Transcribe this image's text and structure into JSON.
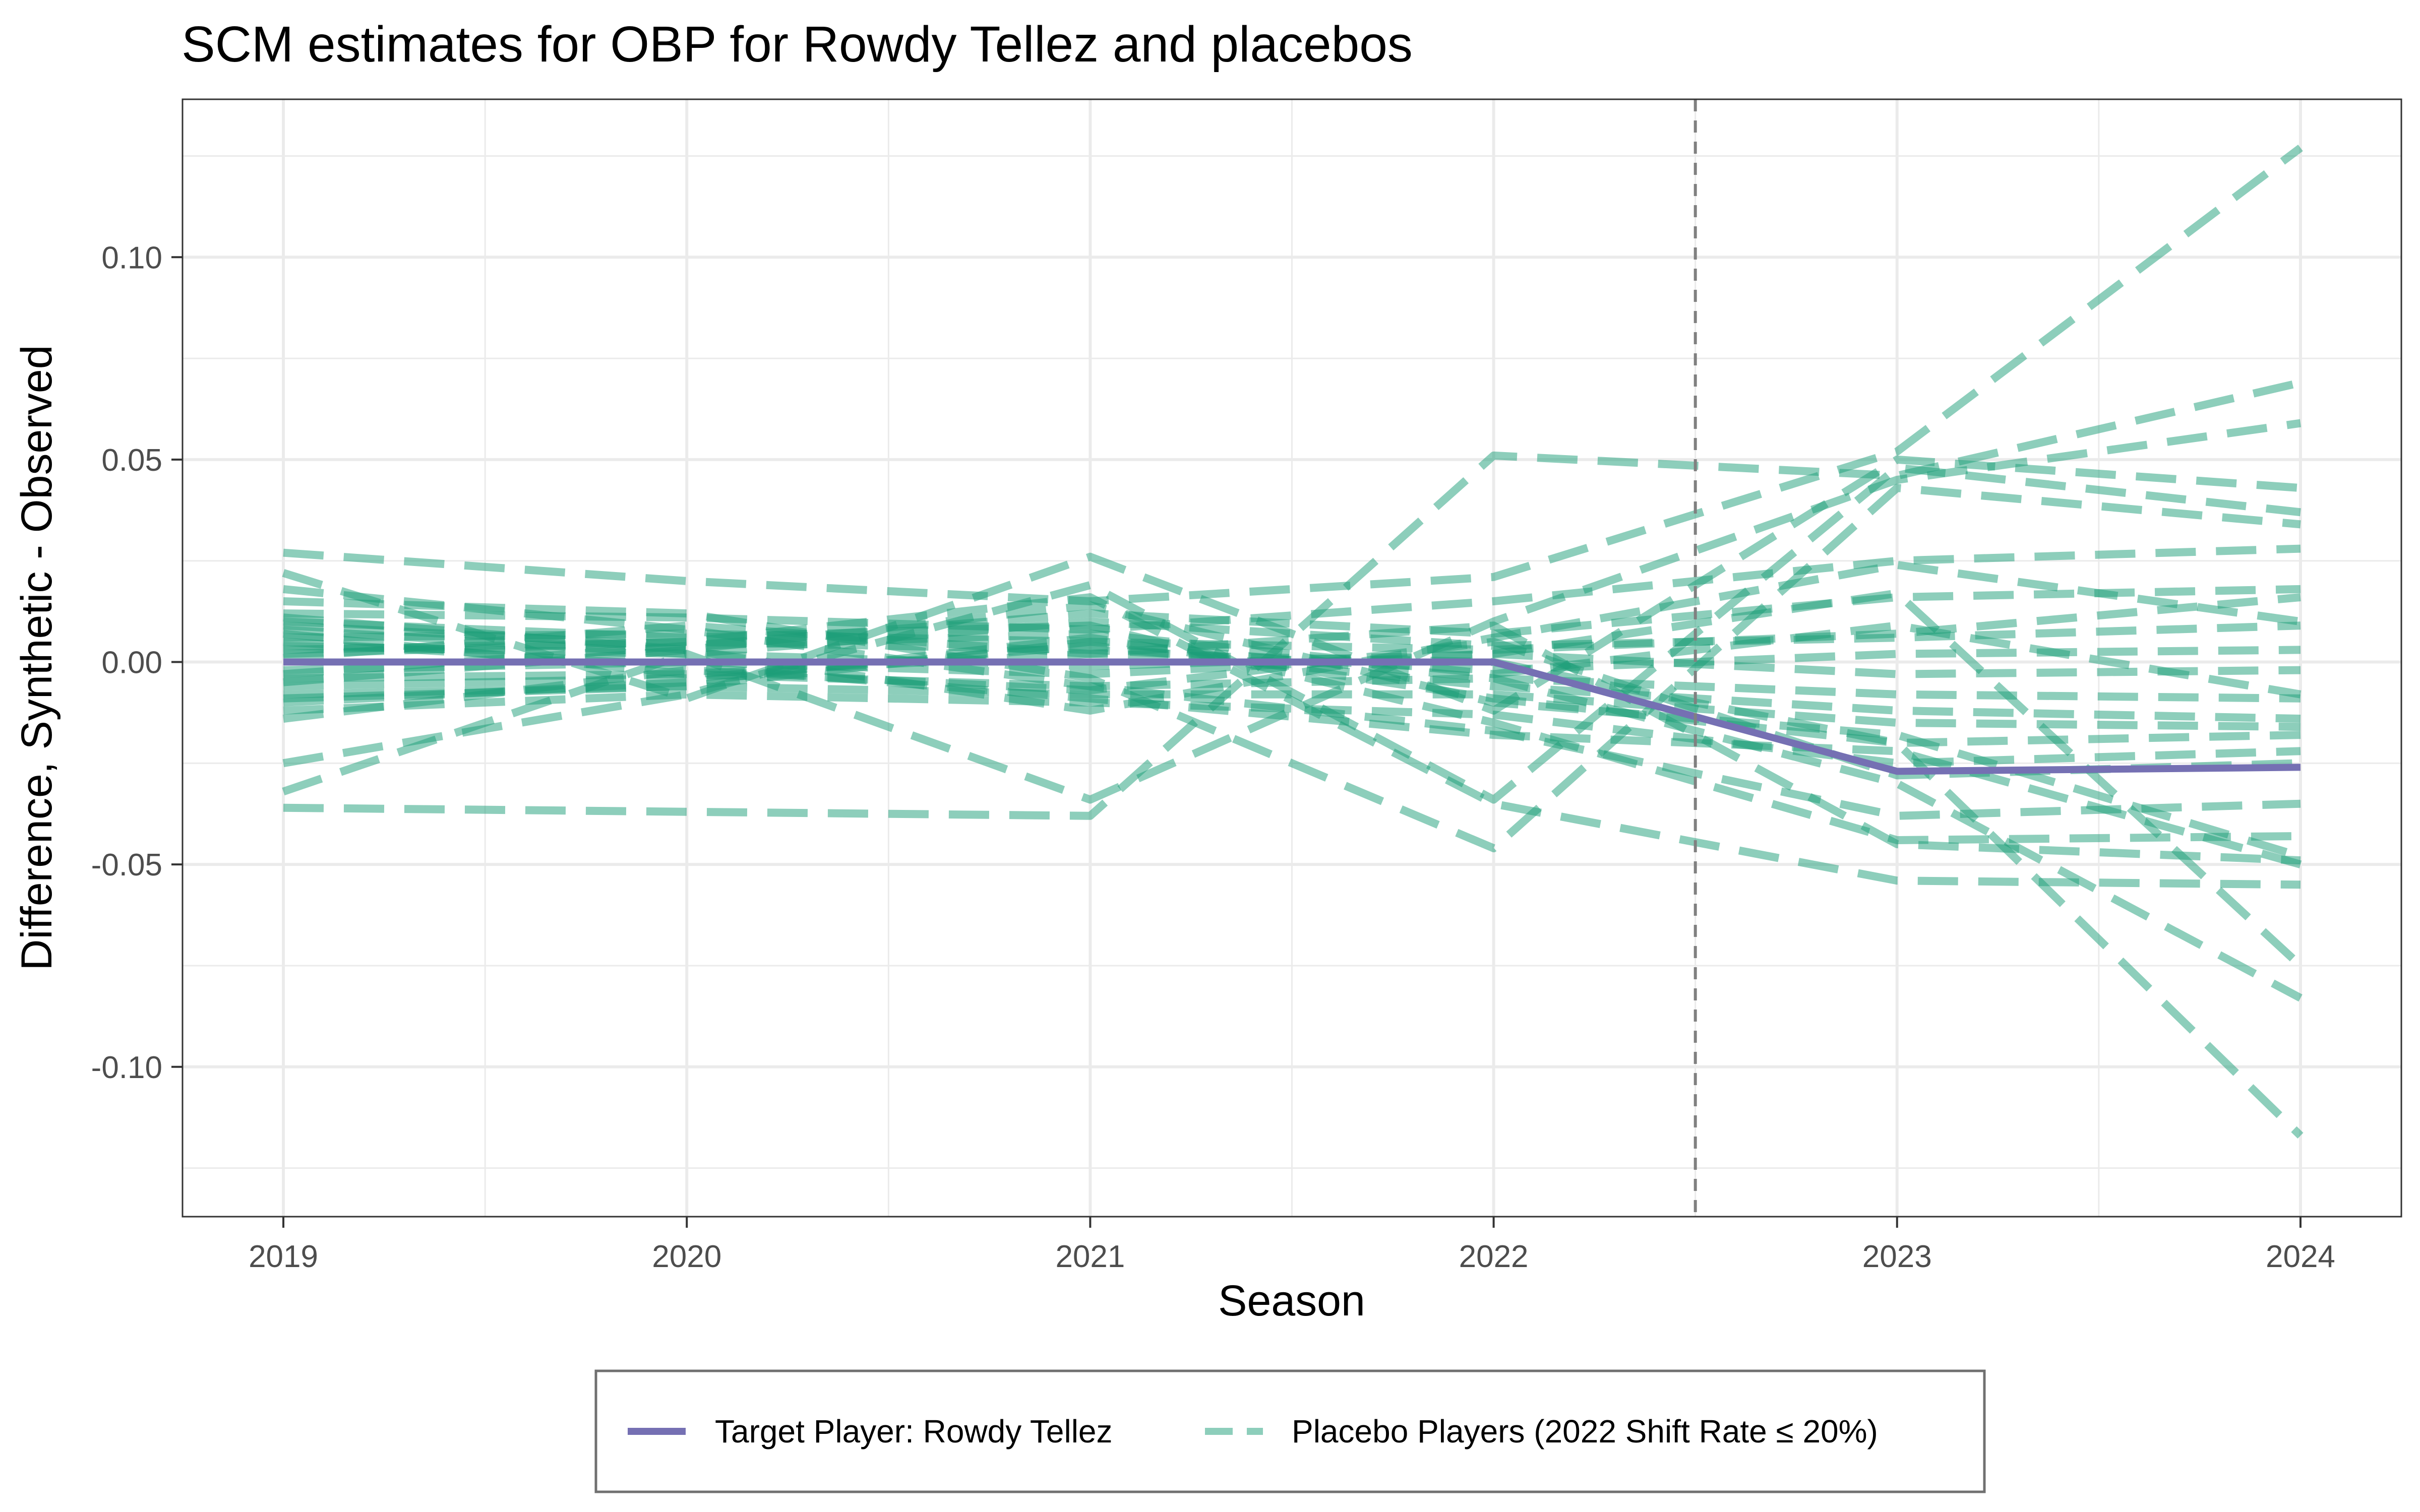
{
  "chart_data": {
    "type": "line",
    "title": "SCM estimates for OBP for Rowdy Tellez and placebos",
    "xlabel": "Season",
    "ylabel": "Difference, Synthetic - Observed",
    "x": [
      2019,
      2020,
      2021,
      2022,
      2023,
      2024
    ],
    "x_ticks": [
      "2019",
      "2020",
      "2021",
      "2022",
      "2023",
      "2024"
    ],
    "xlim": [
      2018.75,
      2024.25
    ],
    "ylim": [
      -0.137,
      0.139
    ],
    "y_ticks": [
      {
        "value": 0.1,
        "label": "0.10"
      },
      {
        "value": 0.05,
        "label": "0.05"
      },
      {
        "value": 0.0,
        "label": "0.00"
      },
      {
        "value": -0.05,
        "label": "-0.05"
      },
      {
        "value": -0.1,
        "label": "-0.10"
      }
    ],
    "vline": {
      "x": 2022.5,
      "style": "dashed",
      "color": "#808080"
    },
    "grid": true,
    "legend_position": "bottom",
    "colors": {
      "target": "#7570B3",
      "placebo": "#1B9E77"
    },
    "legend": [
      {
        "label": "Target Player: Rowdy Tellez",
        "series": "target"
      },
      {
        "label": "Placebo Players (2022 Shift Rate ≤ 20%)",
        "series": "placebo"
      }
    ],
    "target": {
      "values": [
        0.0,
        0.0,
        0.0,
        0.0,
        -0.027,
        -0.026
      ]
    },
    "placebos": [
      [
        0.027,
        0.02,
        0.015,
        0.021,
        0.052,
        0.127
      ],
      [
        -0.036,
        -0.037,
        -0.038,
        0.051,
        0.046,
        0.069
      ],
      [
        -0.032,
        0.002,
        -0.034,
        0.01,
        0.045,
        0.059
      ],
      [
        0.022,
        -0.009,
        0.026,
        -0.012,
        0.05,
        0.043
      ],
      [
        -0.025,
        -0.008,
        0.019,
        -0.034,
        0.048,
        0.037
      ],
      [
        0.015,
        0.012,
        -0.004,
        -0.046,
        0.043,
        0.034
      ],
      [
        0.012,
        0.011,
        0.008,
        0.015,
        0.025,
        0.028
      ],
      [
        0.009,
        0.004,
        0.012,
        0.007,
        0.016,
        0.018
      ],
      [
        0.006,
        0.007,
        0.005,
        0.003,
        0.007,
        0.016
      ],
      [
        0.004,
        0.002,
        0.01,
        0.004,
        0.006,
        0.009
      ],
      [
        0.002,
        0.005,
        0.003,
        -0.002,
        0.002,
        0.003
      ],
      [
        -0.002,
        0.0,
        -0.003,
        0.002,
        -0.003,
        -0.002
      ],
      [
        -0.004,
        -0.003,
        -0.006,
        -0.004,
        -0.008,
        -0.009
      ],
      [
        -0.006,
        -0.004,
        0.004,
        -0.006,
        -0.012,
        -0.014
      ],
      [
        -0.008,
        -0.006,
        -0.008,
        -0.008,
        -0.015,
        -0.016
      ],
      [
        -0.01,
        -0.005,
        0.006,
        -0.009,
        -0.02,
        -0.018
      ],
      [
        -0.012,
        -0.008,
        -0.01,
        -0.013,
        -0.025,
        -0.022
      ],
      [
        -0.014,
        -0.002,
        -0.007,
        0.005,
        -0.028,
        -0.025
      ],
      [
        0.018,
        0.008,
        -0.006,
        -0.017,
        -0.038,
        -0.035
      ],
      [
        0.01,
        0.006,
        0.009,
        -0.015,
        -0.044,
        -0.043
      ],
      [
        0.007,
        -0.003,
        0.002,
        0.009,
        -0.045,
        -0.049
      ],
      [
        -0.005,
        0.003,
        0.014,
        -0.01,
        -0.018,
        -0.048
      ],
      [
        0.005,
        -0.001,
        -0.009,
        -0.018,
        -0.022,
        -0.05
      ],
      [
        0.003,
        0.005,
        0.016,
        -0.035,
        -0.054,
        -0.055
      ],
      [
        0.008,
        0.002,
        -0.001,
        0.002,
        0.017,
        -0.075
      ],
      [
        -0.009,
        -0.006,
        0.005,
        -0.004,
        -0.03,
        -0.083
      ],
      [
        0.001,
        0.009,
        0.002,
        0.0,
        -0.02,
        -0.117
      ],
      [
        0.011,
        0.003,
        -0.012,
        0.006,
        0.024,
        0.01
      ],
      [
        -0.003,
        0.004,
        0.007,
        -0.003,
        0.009,
        -0.008
      ]
    ]
  }
}
